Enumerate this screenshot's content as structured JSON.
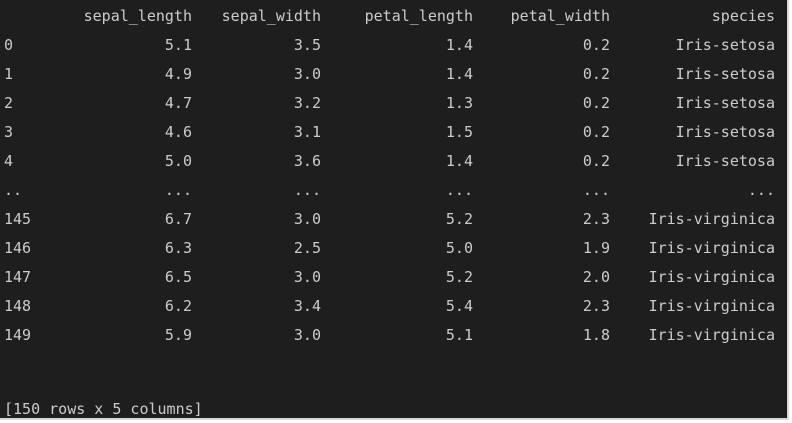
{
  "dataframe": {
    "columns": [
      "sepal_length",
      "sepal_width",
      "petal_length",
      "petal_width",
      "species"
    ],
    "rows": [
      {
        "index": "0",
        "sepal_length": "5.1",
        "sepal_width": "3.5",
        "petal_length": "1.4",
        "petal_width": "0.2",
        "species": "Iris-setosa"
      },
      {
        "index": "1",
        "sepal_length": "4.9",
        "sepal_width": "3.0",
        "petal_length": "1.4",
        "petal_width": "0.2",
        "species": "Iris-setosa"
      },
      {
        "index": "2",
        "sepal_length": "4.7",
        "sepal_width": "3.2",
        "petal_length": "1.3",
        "petal_width": "0.2",
        "species": "Iris-setosa"
      },
      {
        "index": "3",
        "sepal_length": "4.6",
        "sepal_width": "3.1",
        "petal_length": "1.5",
        "petal_width": "0.2",
        "species": "Iris-setosa"
      },
      {
        "index": "4",
        "sepal_length": "5.0",
        "sepal_width": "3.6",
        "petal_length": "1.4",
        "petal_width": "0.2",
        "species": "Iris-setosa"
      },
      {
        "index": "..",
        "sepal_length": "...",
        "sepal_width": "...",
        "petal_length": "...",
        "petal_width": "...",
        "species": "..."
      },
      {
        "index": "145",
        "sepal_length": "6.7",
        "sepal_width": "3.0",
        "petal_length": "5.2",
        "petal_width": "2.3",
        "species": "Iris-virginica"
      },
      {
        "index": "146",
        "sepal_length": "6.3",
        "sepal_width": "2.5",
        "petal_length": "5.0",
        "petal_width": "1.9",
        "species": "Iris-virginica"
      },
      {
        "index": "147",
        "sepal_length": "6.5",
        "sepal_width": "3.0",
        "petal_length": "5.2",
        "petal_width": "2.0",
        "species": "Iris-virginica"
      },
      {
        "index": "148",
        "sepal_length": "6.2",
        "sepal_width": "3.4",
        "petal_length": "5.4",
        "petal_width": "2.3",
        "species": "Iris-virginica"
      },
      {
        "index": "149",
        "sepal_length": "5.9",
        "sepal_width": "3.0",
        "petal_length": "5.1",
        "petal_width": "1.8",
        "species": "Iris-virginica"
      }
    ],
    "footer": "[150 rows x 5 columns]"
  },
  "colors": {
    "background": "#1e1e1e",
    "text": "#cccccc"
  }
}
